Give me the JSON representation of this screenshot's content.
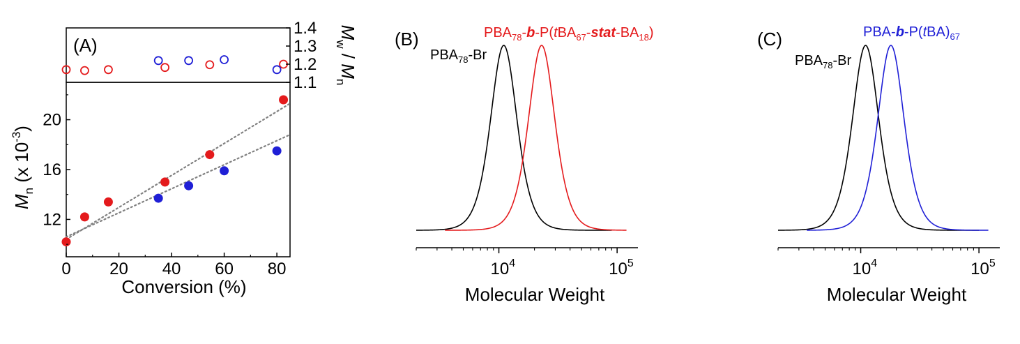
{
  "chart_data": [
    {
      "id": "A",
      "type": "scatter",
      "panel_label": "(A)",
      "xlabel": "Conversion (%)",
      "x_ticks": [
        "0",
        "20",
        "40",
        "60",
        "80"
      ],
      "xlim": [
        0,
        85
      ],
      "top_axis": {
        "ylabel_parts": [
          "M",
          "w",
          " / ",
          "M",
          "n"
        ],
        "ylim": [
          1.1,
          1.4
        ],
        "y_ticks": [
          "1.1",
          "1.2",
          "1.3",
          "1.4"
        ],
        "marker": "open-circle",
        "series": [
          {
            "color": "#e41a1c",
            "x": [
              0,
              7,
              16,
              37.5,
              54.5,
              82.5
            ],
            "y": [
              1.17,
              1.165,
              1.17,
              1.182,
              1.197,
              1.2
            ]
          },
          {
            "color": "#1f1fd6",
            "x": [
              35,
              46.5,
              60,
              80
            ],
            "y": [
              1.22,
              1.22,
              1.225,
              1.17
            ]
          }
        ]
      },
      "bottom_axis": {
        "ylabel_parts": [
          "M",
          "n",
          " (x 10",
          "-3",
          ")"
        ],
        "ylim": [
          9,
          23
        ],
        "y_ticks": [
          "12",
          "16",
          "20"
        ],
        "marker": "filled-circle",
        "series": [
          {
            "color": "#e41a1c",
            "x": [
              0,
              7,
              16,
              37.5,
              54.5,
              82.5
            ],
            "y": [
              10.2,
              12.2,
              13.4,
              15.0,
              17.2,
              21.6
            ]
          },
          {
            "color": "#1f1fd6",
            "x": [
              35,
              46.5,
              60,
              80
            ],
            "y": [
              13.7,
              14.7,
              15.9,
              17.5
            ]
          }
        ],
        "fits": [
          {
            "x": [
              0,
              85
            ],
            "y": [
              10.4,
              21.3
            ]
          },
          {
            "x": [
              0,
              85
            ],
            "y": [
              10.6,
              18.8
            ]
          }
        ]
      }
    },
    {
      "id": "B",
      "type": "line",
      "panel_label": "(B)",
      "xlabel": "Molecular Weight",
      "x_scale": "log",
      "xlim": [
        2000,
        150000
      ],
      "x_ticks": [
        {
          "base": "10",
          "exp": "4"
        },
        {
          "base": "10",
          "exp": "5"
        }
      ],
      "series": [
        {
          "color": "#000000",
          "label_parts": [
            "PBA",
            "78",
            "-Br"
          ],
          "peak_mw": 11000,
          "x_range": [
            2000,
            90000
          ]
        },
        {
          "color": "#e41a1c",
          "label_parts": [
            "PBA",
            "78",
            "-",
            "b",
            "-P(",
            "t",
            "BA",
            "67",
            "-",
            "stat",
            "-BA",
            "18",
            ")"
          ],
          "peak_mw": 23000,
          "x_range": [
            3500,
            120000
          ]
        }
      ]
    },
    {
      "id": "C",
      "type": "line",
      "panel_label": "(C)",
      "xlabel": "Molecular Weight",
      "x_scale": "log",
      "xlim": [
        2000,
        150000
      ],
      "x_ticks": [
        {
          "base": "10",
          "exp": "4"
        },
        {
          "base": "10",
          "exp": "5"
        }
      ],
      "series": [
        {
          "color": "#000000",
          "label_parts": [
            "PBA",
            "78",
            "-Br"
          ],
          "peak_mw": 11000,
          "x_range": [
            2000,
            100000
          ]
        },
        {
          "color": "#1f1fd6",
          "label_parts": [
            "PBA-",
            "b",
            "-P(",
            "t",
            "BA)",
            "67"
          ],
          "peak_mw": 18000,
          "x_range": [
            3500,
            120000
          ]
        }
      ]
    }
  ]
}
